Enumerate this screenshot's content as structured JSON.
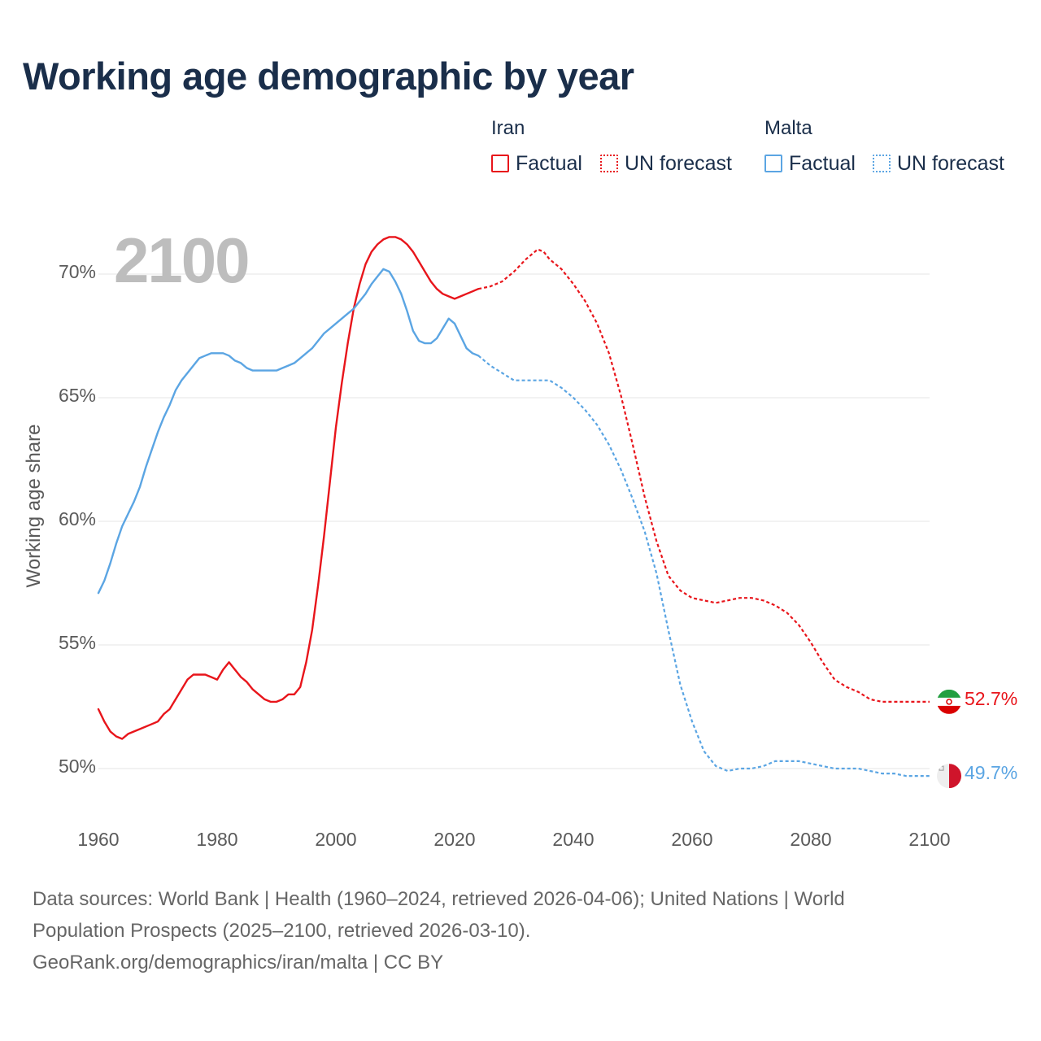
{
  "title": "Working age demographic by year",
  "legend": {
    "iran_label": "Iran",
    "malta_label": "Malta",
    "factual_label": "Factual",
    "forecast_label": "UN forecast"
  },
  "colors": {
    "iran": "#e8151b",
    "malta": "#5ba5e3",
    "grid": "#e6e6e6"
  },
  "icons": {
    "iran_flag": "iran-flag-icon",
    "malta_flag": "malta-flag-icon"
  },
  "year_display": "2100",
  "end_labels": {
    "iran": "52.7%",
    "malta": "49.7%"
  },
  "footer": {
    "line1": "Data sources: World Bank | Health (1960–2024, retrieved 2026-04-06); United Nations | World",
    "line2": "Population Prospects (2025–2100, retrieved 2026-03-10).",
    "line3": "GeoRank.org/demographics/iran/malta | CC BY"
  },
  "chart_data": {
    "type": "line",
    "title": "Working age demographic by year",
    "ylabel": "Working age share",
    "xlabel": "",
    "xlim": [
      1960,
      2100
    ],
    "ylim": [
      48,
      72
    ],
    "x_ticks": [
      1960,
      1980,
      2000,
      2020,
      2040,
      2060,
      2080,
      2100
    ],
    "x_tick_labels": [
      "1960",
      "1980",
      "2000",
      "2020",
      "2040",
      "2060",
      "2080",
      "2100"
    ],
    "y_ticks": [
      50,
      55,
      60,
      65,
      70
    ],
    "y_tick_labels": [
      "50%",
      "55%",
      "60%",
      "65%",
      "70%"
    ],
    "factual_end_year": 2024,
    "legend_position": "top-right",
    "series": [
      {
        "name": "Iran",
        "color": "#e8151b",
        "points": [
          [
            1960,
            52.4
          ],
          [
            1961,
            51.9
          ],
          [
            1962,
            51.5
          ],
          [
            1963,
            51.3
          ],
          [
            1964,
            51.2
          ],
          [
            1965,
            51.4
          ],
          [
            1967,
            51.6
          ],
          [
            1969,
            51.8
          ],
          [
            1970,
            51.9
          ],
          [
            1971,
            52.2
          ],
          [
            1972,
            52.4
          ],
          [
            1973,
            52.8
          ],
          [
            1974,
            53.2
          ],
          [
            1975,
            53.6
          ],
          [
            1976,
            53.8
          ],
          [
            1977,
            53.8
          ],
          [
            1978,
            53.8
          ],
          [
            1979,
            53.7
          ],
          [
            1980,
            53.6
          ],
          [
            1981,
            54.0
          ],
          [
            1982,
            54.3
          ],
          [
            1983,
            54.0
          ],
          [
            1984,
            53.7
          ],
          [
            1985,
            53.5
          ],
          [
            1986,
            53.2
          ],
          [
            1987,
            53.0
          ],
          [
            1988,
            52.8
          ],
          [
            1989,
            52.7
          ],
          [
            1990,
            52.7
          ],
          [
            1991,
            52.8
          ],
          [
            1992,
            53.0
          ],
          [
            1993,
            53.0
          ],
          [
            1994,
            53.3
          ],
          [
            1995,
            54.3
          ],
          [
            1996,
            55.6
          ],
          [
            1997,
            57.4
          ],
          [
            1998,
            59.4
          ],
          [
            1999,
            61.6
          ],
          [
            2000,
            63.8
          ],
          [
            2001,
            65.6
          ],
          [
            2002,
            67.2
          ],
          [
            2003,
            68.6
          ],
          [
            2004,
            69.6
          ],
          [
            2005,
            70.4
          ],
          [
            2006,
            70.9
          ],
          [
            2007,
            71.2
          ],
          [
            2008,
            71.4
          ],
          [
            2009,
            71.5
          ],
          [
            2010,
            71.5
          ],
          [
            2011,
            71.4
          ],
          [
            2012,
            71.2
          ],
          [
            2013,
            70.9
          ],
          [
            2014,
            70.5
          ],
          [
            2015,
            70.1
          ],
          [
            2016,
            69.7
          ],
          [
            2017,
            69.4
          ],
          [
            2018,
            69.2
          ],
          [
            2019,
            69.1
          ],
          [
            2020,
            69.0
          ],
          [
            2021,
            69.1
          ],
          [
            2022,
            69.2
          ],
          [
            2023,
            69.3
          ],
          [
            2024,
            69.4
          ],
          [
            2026,
            69.5
          ],
          [
            2028,
            69.7
          ],
          [
            2030,
            70.1
          ],
          [
            2032,
            70.6
          ],
          [
            2034,
            71.0
          ],
          [
            2035,
            70.9
          ],
          [
            2036,
            70.6
          ],
          [
            2038,
            70.2
          ],
          [
            2040,
            69.6
          ],
          [
            2042,
            68.9
          ],
          [
            2044,
            68.0
          ],
          [
            2046,
            66.8
          ],
          [
            2048,
            65.1
          ],
          [
            2050,
            63.1
          ],
          [
            2052,
            61.0
          ],
          [
            2054,
            59.2
          ],
          [
            2056,
            57.8
          ],
          [
            2058,
            57.2
          ],
          [
            2060,
            56.9
          ],
          [
            2062,
            56.8
          ],
          [
            2064,
            56.7
          ],
          [
            2066,
            56.8
          ],
          [
            2068,
            56.9
          ],
          [
            2070,
            56.9
          ],
          [
            2072,
            56.8
          ],
          [
            2074,
            56.6
          ],
          [
            2076,
            56.3
          ],
          [
            2078,
            55.8
          ],
          [
            2080,
            55.1
          ],
          [
            2082,
            54.3
          ],
          [
            2084,
            53.6
          ],
          [
            2086,
            53.3
          ],
          [
            2088,
            53.1
          ],
          [
            2090,
            52.8
          ],
          [
            2092,
            52.7
          ],
          [
            2094,
            52.7
          ],
          [
            2096,
            52.7
          ],
          [
            2098,
            52.7
          ],
          [
            2100,
            52.7
          ]
        ]
      },
      {
        "name": "Malta",
        "color": "#5ba5e3",
        "points": [
          [
            1960,
            57.1
          ],
          [
            1961,
            57.6
          ],
          [
            1962,
            58.3
          ],
          [
            1963,
            59.1
          ],
          [
            1964,
            59.8
          ],
          [
            1965,
            60.3
          ],
          [
            1966,
            60.8
          ],
          [
            1967,
            61.4
          ],
          [
            1968,
            62.2
          ],
          [
            1969,
            62.9
          ],
          [
            1970,
            63.6
          ],
          [
            1971,
            64.2
          ],
          [
            1972,
            64.7
          ],
          [
            1973,
            65.3
          ],
          [
            1974,
            65.7
          ],
          [
            1975,
            66.0
          ],
          [
            1976,
            66.3
          ],
          [
            1977,
            66.6
          ],
          [
            1978,
            66.7
          ],
          [
            1979,
            66.8
          ],
          [
            1980,
            66.8
          ],
          [
            1981,
            66.8
          ],
          [
            1982,
            66.7
          ],
          [
            1983,
            66.5
          ],
          [
            1984,
            66.4
          ],
          [
            1985,
            66.2
          ],
          [
            1986,
            66.1
          ],
          [
            1987,
            66.1
          ],
          [
            1988,
            66.1
          ],
          [
            1989,
            66.1
          ],
          [
            1990,
            66.1
          ],
          [
            1991,
            66.2
          ],
          [
            1992,
            66.3
          ],
          [
            1993,
            66.4
          ],
          [
            1994,
            66.6
          ],
          [
            1995,
            66.8
          ],
          [
            1996,
            67.0
          ],
          [
            1997,
            67.3
          ],
          [
            1998,
            67.6
          ],
          [
            1999,
            67.8
          ],
          [
            2000,
            68.0
          ],
          [
            2001,
            68.2
          ],
          [
            2002,
            68.4
          ],
          [
            2003,
            68.6
          ],
          [
            2004,
            68.9
          ],
          [
            2005,
            69.2
          ],
          [
            2006,
            69.6
          ],
          [
            2007,
            69.9
          ],
          [
            2008,
            70.2
          ],
          [
            2009,
            70.1
          ],
          [
            2010,
            69.7
          ],
          [
            2011,
            69.2
          ],
          [
            2012,
            68.5
          ],
          [
            2013,
            67.7
          ],
          [
            2014,
            67.3
          ],
          [
            2015,
            67.2
          ],
          [
            2016,
            67.2
          ],
          [
            2017,
            67.4
          ],
          [
            2018,
            67.8
          ],
          [
            2019,
            68.2
          ],
          [
            2020,
            68.0
          ],
          [
            2021,
            67.5
          ],
          [
            2022,
            67.0
          ],
          [
            2023,
            66.8
          ],
          [
            2024,
            66.7
          ],
          [
            2026,
            66.3
          ],
          [
            2028,
            66.0
          ],
          [
            2030,
            65.7
          ],
          [
            2032,
            65.7
          ],
          [
            2034,
            65.7
          ],
          [
            2036,
            65.7
          ],
          [
            2038,
            65.4
          ],
          [
            2040,
            65.0
          ],
          [
            2042,
            64.5
          ],
          [
            2044,
            63.9
          ],
          [
            2046,
            63.1
          ],
          [
            2048,
            62.1
          ],
          [
            2050,
            60.9
          ],
          [
            2052,
            59.6
          ],
          [
            2054,
            57.9
          ],
          [
            2056,
            55.6
          ],
          [
            2058,
            53.4
          ],
          [
            2060,
            51.9
          ],
          [
            2062,
            50.7
          ],
          [
            2064,
            50.1
          ],
          [
            2066,
            49.9
          ],
          [
            2068,
            50.0
          ],
          [
            2070,
            50.0
          ],
          [
            2072,
            50.1
          ],
          [
            2074,
            50.3
          ],
          [
            2076,
            50.3
          ],
          [
            2078,
            50.3
          ],
          [
            2080,
            50.2
          ],
          [
            2082,
            50.1
          ],
          [
            2084,
            50.0
          ],
          [
            2086,
            50.0
          ],
          [
            2088,
            50.0
          ],
          [
            2090,
            49.9
          ],
          [
            2092,
            49.8
          ],
          [
            2094,
            49.8
          ],
          [
            2096,
            49.7
          ],
          [
            2098,
            49.7
          ],
          [
            2100,
            49.7
          ]
        ]
      }
    ]
  }
}
